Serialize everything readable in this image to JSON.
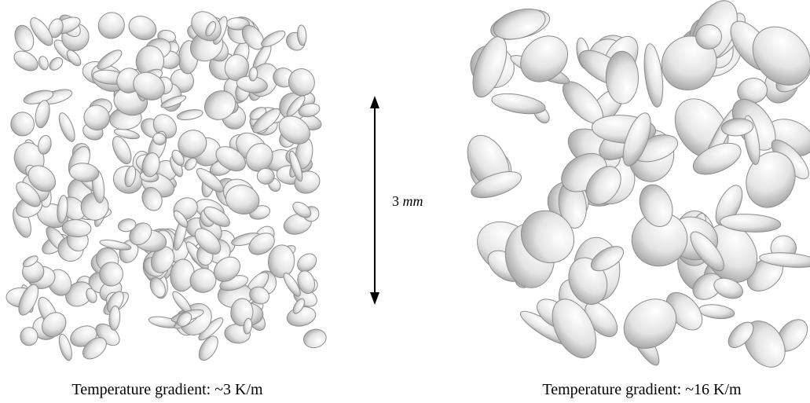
{
  "figure": {
    "scale_bar": {
      "value": "3",
      "unit": "mm"
    },
    "panels": [
      {
        "caption": "Temperature gradient: ~3 K/m"
      },
      {
        "caption": "Temperature gradient: ~16 K/m"
      }
    ]
  }
}
